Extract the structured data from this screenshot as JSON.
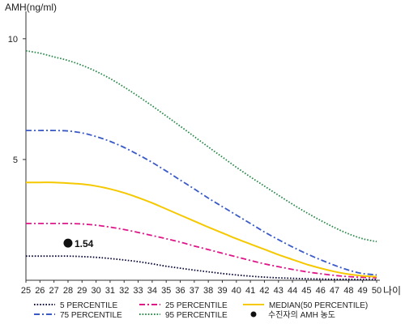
{
  "chart_data": {
    "type": "line",
    "ylabel": "AMH(ng/ml)",
    "xlabel": "나이",
    "x": [
      25,
      26,
      27,
      28,
      29,
      30,
      31,
      32,
      33,
      34,
      35,
      36,
      37,
      38,
      39,
      40,
      41,
      42,
      43,
      44,
      45,
      46,
      47,
      48,
      49,
      50
    ],
    "xlim": [
      25,
      50
    ],
    "ylim": [
      0,
      11
    ],
    "yticks": [
      5,
      10
    ],
    "grid": false,
    "legend_position": "bottom",
    "series": [
      {
        "name": "5 PERCENTILE",
        "color": "#0a0a3c",
        "style": "dotted",
        "values": [
          1.0,
          1.0,
          1.0,
          1.0,
          0.98,
          0.95,
          0.9,
          0.84,
          0.77,
          0.68,
          0.58,
          0.5,
          0.42,
          0.35,
          0.28,
          0.22,
          0.17,
          0.13,
          0.1,
          0.08,
          0.06,
          0.05,
          0.04,
          0.04,
          0.03,
          0.03
        ]
      },
      {
        "name": "25 PERCENTILE",
        "color": "#e0158a",
        "style": "dashdot",
        "values": [
          2.35,
          2.35,
          2.35,
          2.35,
          2.33,
          2.28,
          2.2,
          2.1,
          1.98,
          1.85,
          1.72,
          1.58,
          1.42,
          1.27,
          1.12,
          0.97,
          0.82,
          0.68,
          0.56,
          0.45,
          0.35,
          0.27,
          0.2,
          0.15,
          0.12,
          0.1
        ]
      },
      {
        "name": "MEDIAN(50 PERCENTILE)",
        "color": "#f5c800",
        "style": "solid",
        "values": [
          4.05,
          4.05,
          4.05,
          4.02,
          3.98,
          3.9,
          3.78,
          3.62,
          3.42,
          3.2,
          2.95,
          2.7,
          2.45,
          2.2,
          1.96,
          1.72,
          1.5,
          1.28,
          1.06,
          0.86,
          0.66,
          0.5,
          0.36,
          0.25,
          0.18,
          0.15
        ]
      },
      {
        "name": "75 PERCENTILE",
        "color": "#3a5ac8",
        "style": "dashdot",
        "values": [
          6.2,
          6.2,
          6.2,
          6.18,
          6.1,
          5.95,
          5.75,
          5.5,
          5.2,
          4.88,
          4.52,
          4.15,
          3.78,
          3.4,
          3.05,
          2.7,
          2.35,
          2.0,
          1.68,
          1.38,
          1.1,
          0.85,
          0.62,
          0.42,
          0.28,
          0.22
        ]
      },
      {
        "name": "95 PERCENTILE",
        "color": "#2a8a4a",
        "style": "dotted",
        "values": [
          9.5,
          9.4,
          9.25,
          9.1,
          8.9,
          8.65,
          8.35,
          8.0,
          7.62,
          7.22,
          6.8,
          6.38,
          5.95,
          5.52,
          5.1,
          4.68,
          4.28,
          3.9,
          3.52,
          3.15,
          2.8,
          2.48,
          2.18,
          1.92,
          1.72,
          1.6
        ]
      }
    ],
    "points": [
      {
        "name": "수진자의 AMH 농도",
        "x": 28,
        "y": 1.54,
        "label": "1.54",
        "color": "#111111"
      }
    ]
  }
}
